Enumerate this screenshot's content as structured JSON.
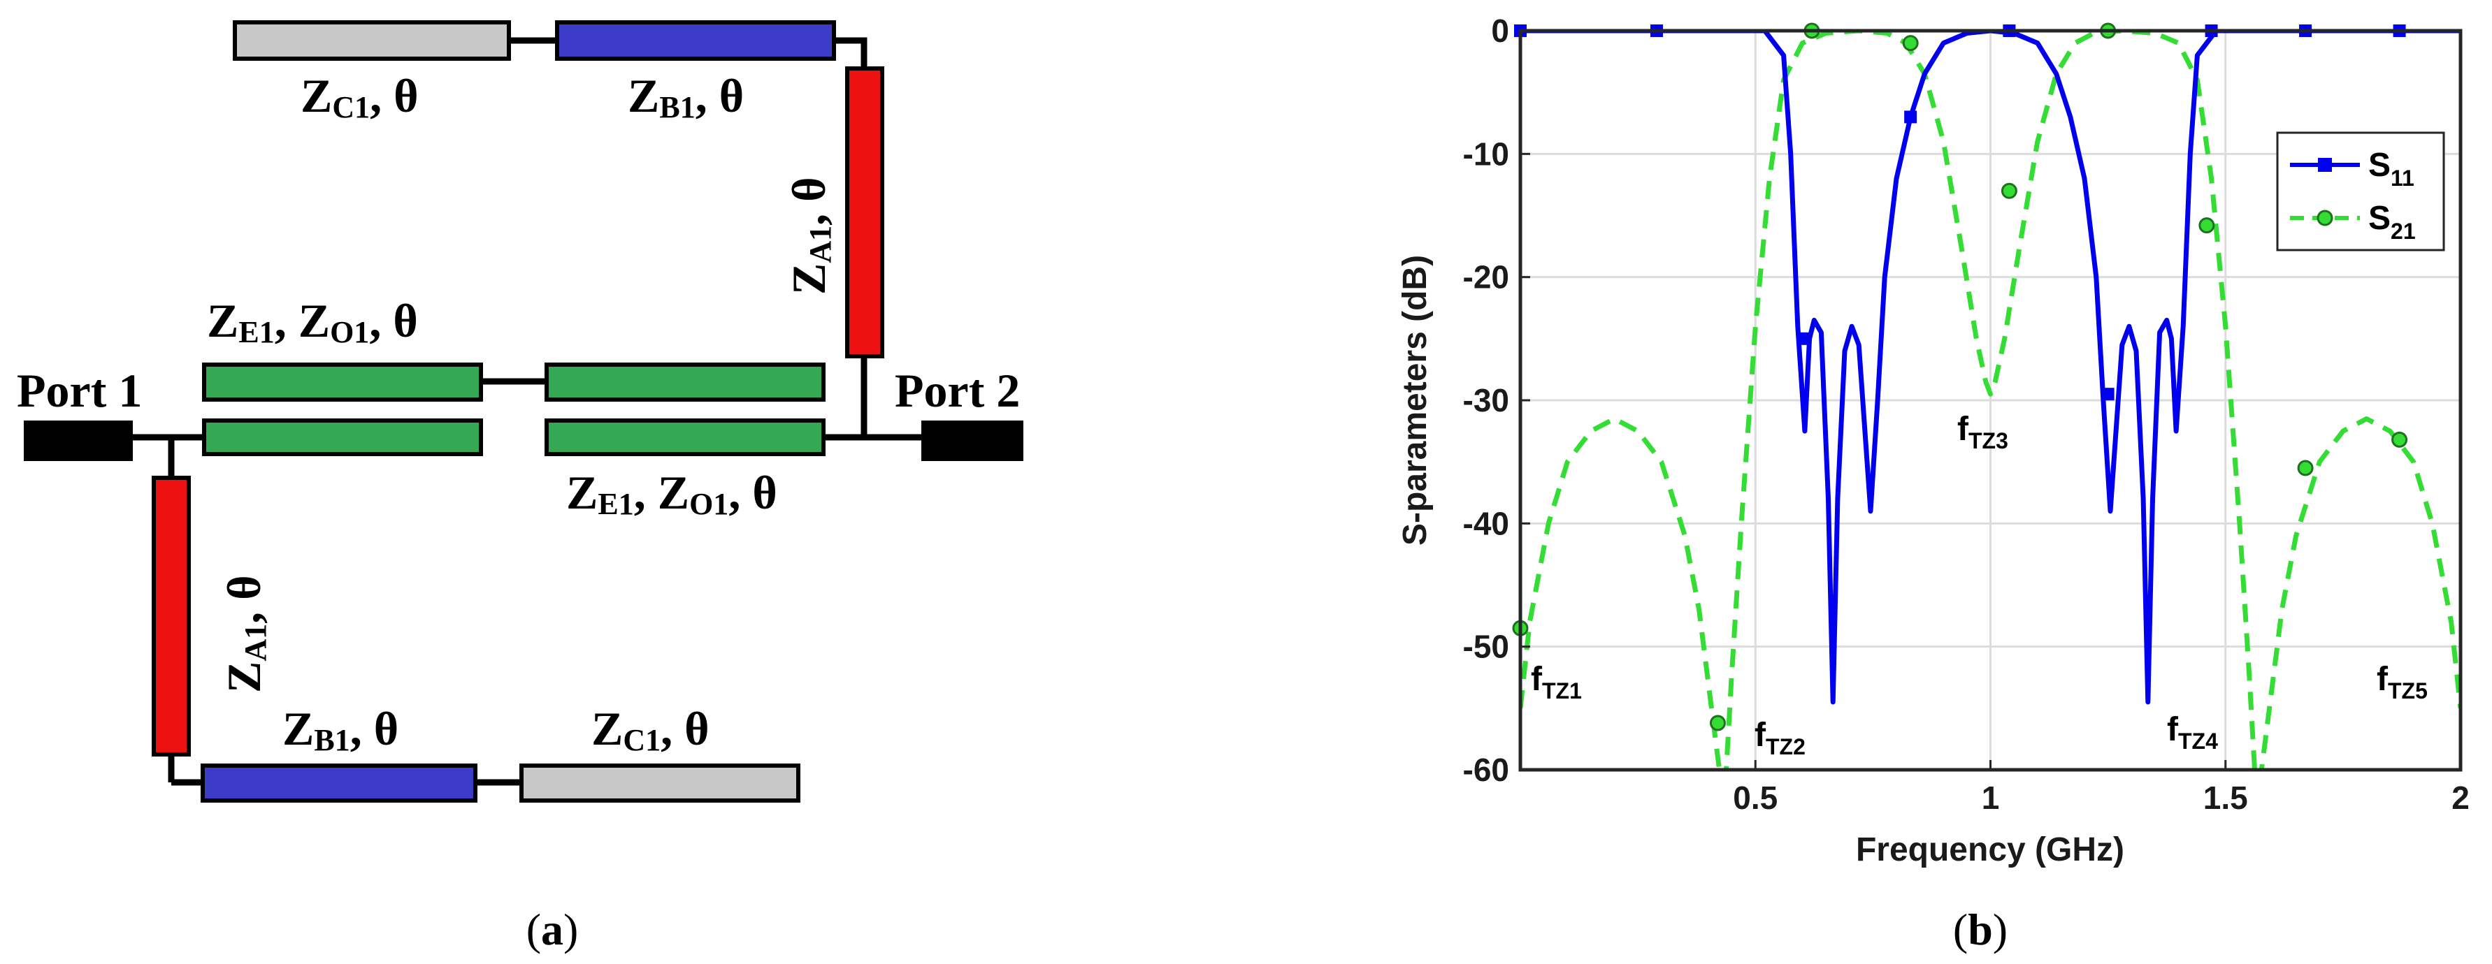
{
  "panel_a": {
    "caption_open": "(",
    "caption_letter": "a",
    "caption_close": ")",
    "port1": "Port 1",
    "port2": "Port 2",
    "theta": "θ",
    "comma": ",",
    "labels": {
      "zc1": {
        "main": "Z",
        "sub": "C1"
      },
      "zb1": {
        "main": "Z",
        "sub": "B1"
      },
      "za1": {
        "main": "Z",
        "sub": "A1"
      },
      "ze1": {
        "main": "Z",
        "sub": "E1"
      },
      "zo1": {
        "main": "Z",
        "sub": "O1"
      }
    },
    "colors": {
      "grey": "#c8c8c8",
      "blue": "#3c3cc8",
      "red": "#ee1111",
      "green": "#34a853",
      "black": "#000000"
    }
  },
  "panel_b": {
    "caption_open": "(",
    "caption_letter": "b",
    "caption_close": ")",
    "annotations": [
      {
        "main": "f",
        "sub": "TZ1"
      },
      {
        "main": "f",
        "sub": "TZ2"
      },
      {
        "main": "f",
        "sub": "TZ3"
      },
      {
        "main": "f",
        "sub": "TZ4"
      },
      {
        "main": "f",
        "sub": "TZ5"
      }
    ]
  },
  "chart_data": {
    "type": "line",
    "xlabel": "Frequency (GHz)",
    "ylabel": "S-parameters (dB)",
    "xlim": [
      0,
      2
    ],
    "ylim": [
      -60,
      0
    ],
    "xticks": [
      "0.5",
      "1",
      "1.5",
      "2"
    ],
    "yticks": [
      "0",
      "-10",
      "-20",
      "-30",
      "-40",
      "-50",
      "-60"
    ],
    "grid": true,
    "legend": "top-right",
    "series": [
      {
        "name": "S11",
        "name_main": "S",
        "name_sub": "11",
        "color": "#0000ee",
        "style": "solid",
        "marker": "square",
        "x": [
          0.0,
          0.52,
          0.56,
          0.575,
          0.59,
          0.605,
          0.615,
          0.625,
          0.64,
          0.655,
          0.665,
          0.675,
          0.69,
          0.705,
          0.72,
          0.745,
          0.76,
          0.775,
          0.8,
          0.83,
          0.86,
          0.9,
          0.95,
          1.0,
          1.05,
          1.1,
          1.14,
          1.17,
          1.2,
          1.225,
          1.24,
          1.255,
          1.28,
          1.295,
          1.31,
          1.325,
          1.335,
          1.345,
          1.36,
          1.375,
          1.385,
          1.395,
          1.41,
          1.425,
          1.44,
          1.48,
          2.0
        ],
        "y": [
          0,
          0,
          -2,
          -10,
          -24,
          -32.5,
          -25,
          -23.5,
          -24.5,
          -38,
          -54.5,
          -38,
          -26,
          -24,
          -25.5,
          -39,
          -30,
          -20,
          -12,
          -7,
          -3.5,
          -1,
          -0.2,
          0,
          -0.2,
          -1,
          -3.5,
          -7,
          -12,
          -20,
          -30,
          -39,
          -25.5,
          -24,
          -26,
          -38,
          -54.5,
          -38,
          -24.5,
          -23.5,
          -25,
          -32.5,
          -24,
          -10,
          -2,
          0,
          0
        ],
        "marker_x": [
          0.0,
          0.29,
          0.605,
          0.83,
          1.04,
          1.25,
          1.47,
          1.67,
          1.87
        ],
        "marker_y": [
          0,
          0,
          -25,
          -7,
          0,
          -29.5,
          0,
          0,
          0
        ]
      },
      {
        "name": "S21",
        "name_main": "S",
        "name_sub": "21",
        "color": "#33dd33",
        "style": "dashed",
        "marker": "circle",
        "x": [
          0.0,
          0.02,
          0.06,
          0.1,
          0.15,
          0.2,
          0.25,
          0.3,
          0.35,
          0.38,
          0.41,
          0.43,
          0.435,
          0.45,
          0.47,
          0.5,
          0.53,
          0.56,
          0.6,
          0.65,
          0.72,
          0.78,
          0.82,
          0.86,
          0.9,
          0.94,
          0.97,
          0.99,
          1.0,
          1.01,
          1.03,
          1.06,
          1.1,
          1.14,
          1.18,
          1.22,
          1.28,
          1.35,
          1.4,
          1.44,
          1.47,
          1.5,
          1.53,
          1.55,
          1.565,
          1.57,
          1.59,
          1.62,
          1.65,
          1.7,
          1.75,
          1.8,
          1.85,
          1.9,
          1.94,
          1.98,
          2.0
        ],
        "y": [
          -55,
          -48,
          -40,
          -35,
          -32.5,
          -31.5,
          -32.5,
          -35,
          -41,
          -47,
          -56,
          -62,
          -62,
          -52,
          -40,
          -24,
          -12,
          -4,
          -1,
          -0.2,
          0,
          -0.2,
          -1,
          -3.5,
          -9,
          -18,
          -25,
          -28.5,
          -29.5,
          -28.5,
          -25,
          -18,
          -9,
          -3.5,
          -1,
          -0.2,
          0,
          -0.2,
          -1,
          -4,
          -12,
          -24,
          -40,
          -52,
          -62,
          -62,
          -56,
          -47,
          -41,
          -35,
          -32.5,
          -31.5,
          -32.5,
          -35,
          -40,
          -48,
          -55
        ],
        "marker_x": [
          0.0,
          0.42,
          0.62,
          0.83,
          1.04,
          1.25,
          1.46,
          1.67,
          1.87
        ],
        "marker_y": [
          -48.5,
          -56.2,
          0,
          -1,
          -13,
          0,
          -15.8,
          -35.5,
          -33.2
        ]
      }
    ]
  }
}
